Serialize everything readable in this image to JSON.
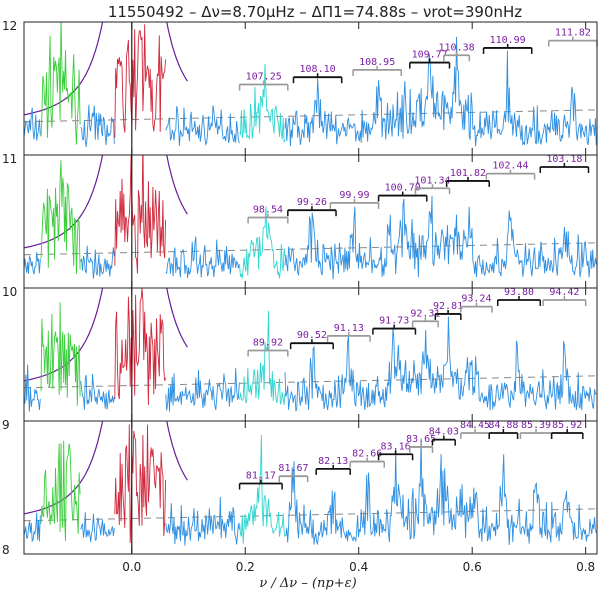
{
  "chart_data": {
    "type": "line",
    "title": "11550492 – Δν=8.70μHz – ΔΠ1=74.88s – νrot=390nHz",
    "xlabel": "ν / Δν – (np+ε)",
    "xlim": [
      -0.19,
      0.82
    ],
    "x_ticks": [
      "0.0",
      "0.2",
      "0.4",
      "0.6",
      "0.8"
    ],
    "x_tick_values": [
      0.0,
      0.2,
      0.4,
      0.6,
      0.8
    ],
    "y_ticks": [
      "12",
      "11",
      "10",
      "9",
      "8"
    ],
    "colors": {
      "spectrum": "#2f8fe0",
      "l2_mode": "#3ccd3c",
      "l0_mode": "#d0283c",
      "l3_mode": "#2fd6d0",
      "envelope": "#6a1b9a",
      "background": "#888888",
      "period_label": "#7b1fa2"
    },
    "panels": [
      {
        "order": "11",
        "periods": [
          {
            "label": "107.25",
            "x": 0.19,
            "w": 0.085,
            "bracket": "gray"
          },
          {
            "label": "108.10",
            "x": 0.285,
            "w": 0.085,
            "bracket": "black"
          },
          {
            "label": "108.95",
            "x": 0.39,
            "w": 0.085,
            "bracket": "gray"
          },
          {
            "label": "109.77",
            "x": 0.49,
            "w": 0.07,
            "bracket": "black"
          },
          {
            "label": "110.38",
            "x": 0.55,
            "w": 0.045,
            "bracket": "gray"
          },
          {
            "label": "110.99",
            "x": 0.62,
            "w": 0.085,
            "bracket": "black"
          },
          {
            "label": "111.82",
            "x": 0.735,
            "w": 0.085,
            "bracket": "gray"
          }
        ]
      },
      {
        "order": "10",
        "periods": [
          {
            "label": "98.54",
            "x": 0.205,
            "w": 0.07,
            "bracket": "gray"
          },
          {
            "label": "99.26",
            "x": 0.275,
            "w": 0.085,
            "bracket": "black"
          },
          {
            "label": "99.99",
            "x": 0.35,
            "w": 0.085,
            "bracket": "gray"
          },
          {
            "label": "100.70",
            "x": 0.435,
            "w": 0.085,
            "bracket": "black"
          },
          {
            "label": "101.34",
            "x": 0.5,
            "w": 0.06,
            "bracket": "gray"
          },
          {
            "label": "101.82",
            "x": 0.555,
            "w": 0.075,
            "bracket": "black"
          },
          {
            "label": "102.44",
            "x": 0.625,
            "w": 0.085,
            "bracket": "gray"
          },
          {
            "label": "103.18",
            "x": 0.72,
            "w": 0.085,
            "bracket": "black"
          }
        ]
      },
      {
        "order": "9",
        "periods": [
          {
            "label": "89.92",
            "x": 0.205,
            "w": 0.07,
            "bracket": "gray"
          },
          {
            "label": "90.52",
            "x": 0.28,
            "w": 0.075,
            "bracket": "black"
          },
          {
            "label": "91.13",
            "x": 0.345,
            "w": 0.075,
            "bracket": "gray"
          },
          {
            "label": "91.73",
            "x": 0.425,
            "w": 0.075,
            "bracket": "black"
          },
          {
            "label": "92.31",
            "x": 0.495,
            "w": 0.045,
            "bracket": "gray"
          },
          {
            "label": "92.81",
            "x": 0.535,
            "w": 0.045,
            "bracket": "black"
          },
          {
            "label": "93.24",
            "x": 0.58,
            "w": 0.055,
            "bracket": "gray"
          },
          {
            "label": "93.80",
            "x": 0.645,
            "w": 0.075,
            "bracket": "black"
          },
          {
            "label": "94.42",
            "x": 0.725,
            "w": 0.075,
            "bracket": "gray"
          }
        ]
      },
      {
        "order": "8",
        "periods": [
          {
            "label": "81.17",
            "x": 0.19,
            "w": 0.075,
            "bracket": "black"
          },
          {
            "label": "81.67",
            "x": 0.26,
            "w": 0.05,
            "bracket": "gray"
          },
          {
            "label": "82.13",
            "x": 0.325,
            "w": 0.06,
            "bracket": "black"
          },
          {
            "label": "82.66",
            "x": 0.385,
            "w": 0.06,
            "bracket": "gray"
          },
          {
            "label": "83.16",
            "x": 0.435,
            "w": 0.06,
            "bracket": "black"
          },
          {
            "label": "83.65",
            "x": 0.49,
            "w": 0.04,
            "bracket": "gray"
          },
          {
            "label": "84.03",
            "x": 0.53,
            "w": 0.04,
            "bracket": "black"
          },
          {
            "label": "84.45",
            "x": 0.58,
            "w": 0.05,
            "bracket": "gray"
          },
          {
            "label": "84.88",
            "x": 0.63,
            "w": 0.05,
            "bracket": "black"
          },
          {
            "label": "85.39",
            "x": 0.685,
            "w": 0.055,
            "bracket": "gray"
          },
          {
            "label": "85.92",
            "x": 0.74,
            "w": 0.055,
            "bracket": "black"
          }
        ]
      }
    ]
  }
}
